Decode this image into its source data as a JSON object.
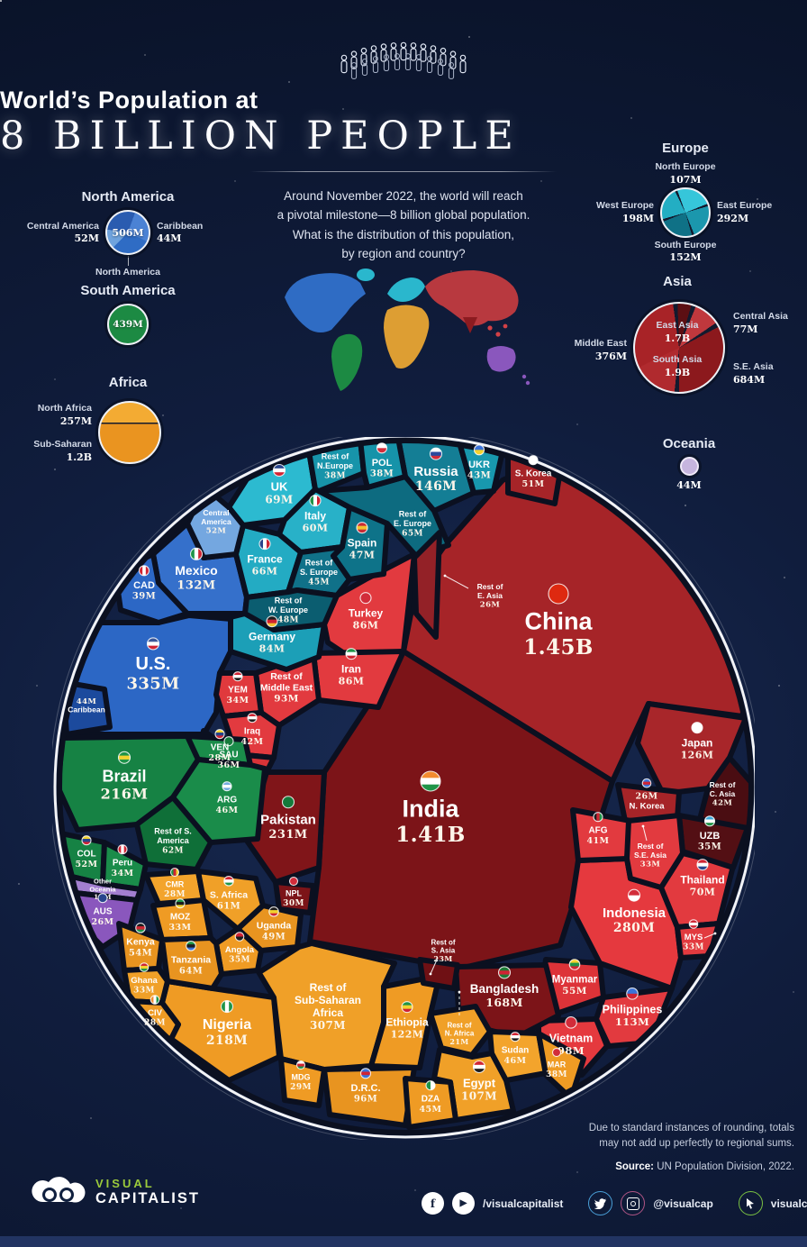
{
  "header": {
    "title_line1": "World’s Population at",
    "title_line2": "8 BILLION PEOPLE",
    "intro": "Around November 2022, the world will reach\na pivotal milestone—8 billion global population.\nWhat is the distribution of this population,\nby region and country?"
  },
  "legends": {
    "north_america": {
      "title": "North America",
      "left_label": "Central America",
      "left_value": "52M",
      "center_value": "506M",
      "right_label": "Caribbean",
      "right_value": "44M",
      "pointer_label": "North America",
      "color": "#2f6cc4"
    },
    "south_america": {
      "title": "South America",
      "value": "439M",
      "color": "#1c8a43"
    },
    "africa": {
      "title": "Africa",
      "top_label": "North Africa",
      "top_value": "257M",
      "bottom_label": "Sub-Saharan",
      "bottom_value": "1.2B",
      "color": "#ef9b24"
    },
    "europe": {
      "title": "Europe",
      "north_label": "North Europe",
      "north_value": "107M",
      "west_label": "West Europe",
      "west_value": "198M",
      "east_label": "East Europe",
      "east_value": "292M",
      "south_label": "South Europe",
      "south_value": "152M",
      "color": "#2ab7cd"
    },
    "asia": {
      "title": "Asia",
      "east_label": "East Asia",
      "east_value": "1.7B",
      "south_label": "South Asia",
      "south_value": "1.9B",
      "central_label": "Central Asia",
      "central_value": "77M",
      "middle_east_label": "Middle East",
      "middle_east_value": "376M",
      "se_label": "S.E. Asia",
      "se_value": "684M",
      "color": "#a82327"
    },
    "oceania": {
      "title": "Oceania",
      "value": "44M",
      "color": "#c6b5de"
    }
  },
  "chart_data": {
    "type": "voronoi_circular_treemap",
    "title": "World’s Population at 8 Billion People",
    "unit": "millions of people",
    "total_label": "8 billion",
    "regions": [
      {
        "name": "North America",
        "color": "#2c67c5",
        "subregions": [
          {
            "name": "North America",
            "m": 506
          },
          {
            "name": "Central America",
            "m": 52
          },
          {
            "name": "Caribbean",
            "m": 44
          }
        ]
      },
      {
        "name": "South America",
        "color": "#1c8a43",
        "subregions": [
          {
            "name": "South America",
            "m": 439
          }
        ]
      },
      {
        "name": "Europe",
        "color": "#2ab7cd",
        "subregions": [
          {
            "name": "North Europe",
            "m": 107
          },
          {
            "name": "West Europe",
            "m": 198
          },
          {
            "name": "East Europe",
            "m": 292
          },
          {
            "name": "South Europe",
            "m": 152
          }
        ]
      },
      {
        "name": "Africa",
        "color": "#ef9b24",
        "subregions": [
          {
            "name": "North Africa",
            "m": 257
          },
          {
            "name": "Sub-Saharan",
            "m": 1200
          }
        ]
      },
      {
        "name": "Asia",
        "color": "#a82327",
        "subregions": [
          {
            "name": "East Asia",
            "m": 1700
          },
          {
            "name": "South Asia",
            "m": 1900
          },
          {
            "name": "Central Asia",
            "m": 77
          },
          {
            "name": "S.E. Asia",
            "m": 684
          },
          {
            "name": "Middle East",
            "m": 376
          }
        ]
      },
      {
        "name": "Oceania",
        "color": "#8a57bd",
        "subregions": [
          {
            "name": "Oceania",
            "m": 44
          }
        ]
      }
    ],
    "cells": {
      "uk": {
        "name": "UK",
        "value": "69M",
        "m": 69,
        "color": "#2cbad0",
        "flag": [
          "#28458c",
          "#ffffff",
          "#cf2433"
        ]
      },
      "rest_n_europe": {
        "name": "Rest of\nN.Europe",
        "value": "38M",
        "m": 38,
        "color": "#1794aa"
      },
      "pol": {
        "name": "POL",
        "value": "38M",
        "m": 38,
        "color": "#1693a9",
        "flag": [
          "#ffffff",
          "#d22c3a"
        ]
      },
      "russia": {
        "name": "Russia",
        "value": "146M",
        "m": 146,
        "color": "#147e95",
        "flag": [
          "#ffffff",
          "#2b4a9e",
          "#d22c3a"
        ]
      },
      "ukr": {
        "name": "UKR",
        "value": "43M",
        "m": 43,
        "color": "#1898ae",
        "flag": [
          "#3a72d8",
          "#f2d22e"
        ]
      },
      "italy": {
        "name": "Italy",
        "value": "60M",
        "m": 60,
        "color": "#28b1c8",
        "flag": [
          "#1f9448",
          "#ffffff",
          "#cf2433"
        ],
        "fv": true
      },
      "spain": {
        "name": "Spain",
        "value": "47M",
        "m": 47,
        "color": "#0e7389",
        "flag": [
          "#c92b33",
          "#f2c12e",
          "#c92b33"
        ]
      },
      "rest_e_europe": {
        "name": "Rest of\nE. Europe",
        "value": "65M",
        "m": 65,
        "color": "#0d6b80"
      },
      "france": {
        "name": "France",
        "value": "66M",
        "m": 66,
        "color": "#23abc3",
        "flag": [
          "#28458c",
          "#ffffff",
          "#cf2433"
        ],
        "fv": true
      },
      "rest_s_europe": {
        "name": "Rest of\nS. Europe",
        "value": "45M",
        "m": 45,
        "color": "#107189"
      },
      "rest_w_europe": {
        "name": "Rest of\nW. Europe",
        "value": "48M",
        "m": 48,
        "color": "#0b5d70"
      },
      "germany": {
        "name": "Germany",
        "value": "84M",
        "m": 84,
        "color": "#1c9fb7",
        "flag": [
          "#1d1d1d",
          "#cf2433",
          "#f2c12e"
        ]
      },
      "central_america": {
        "name": "Central\nAmerica",
        "value": "52M",
        "m": 52,
        "color": "#74a7e0"
      },
      "mexico": {
        "name": "Mexico",
        "value": "132M",
        "m": 132,
        "color": "#3570cb",
        "flag": [
          "#1f9448",
          "#ffffff",
          "#cf2433"
        ],
        "fv": true
      },
      "cad": {
        "name": "CAD",
        "value": "39M",
        "m": 39,
        "color": "#2c67c5",
        "flag": [
          "#cf2433",
          "#ffffff",
          "#cf2433"
        ],
        "fv": true
      },
      "us": {
        "name": "U.S.",
        "value": "335M",
        "m": 335,
        "color": "#2c67c5",
        "flag": [
          "#3a5799",
          "#ffffff",
          "#cf2433"
        ]
      },
      "caribbean": {
        "name": "Caribbean",
        "value": "44M",
        "m": 44,
        "color": "#1c4a9d",
        "vf": true
      },
      "turkey": {
        "name": "Turkey",
        "value": "86M",
        "m": 86,
        "color": "#e23a3f",
        "flag": [
          "#d22c3a"
        ]
      },
      "iran": {
        "name": "Iran",
        "value": "86M",
        "m": 86,
        "color": "#e23a3f",
        "flag": [
          "#1f9448",
          "#ffffff",
          "#cf2433"
        ]
      },
      "rest_middle_east": {
        "name": "Rest of\nMiddle East",
        "value": "93M",
        "m": 93,
        "color": "#e23a3f"
      },
      "yem": {
        "name": "YEM",
        "value": "34M",
        "m": 34,
        "color": "#e0393d",
        "flag": [
          "#cf2433",
          "#ffffff",
          "#1d1d1d"
        ]
      },
      "iraq": {
        "name": "Iraq",
        "value": "42M",
        "m": 42,
        "color": "#e23a3f",
        "flag": [
          "#cf2433",
          "#ffffff",
          "#1d1d1d"
        ]
      },
      "sau": {
        "name": "SAU",
        "value": "36M",
        "m": 36,
        "color": "#d93338",
        "flag": [
          "#157a3b"
        ]
      },
      "brazil": {
        "name": "Brazil",
        "value": "216M",
        "m": 216,
        "color": "#168244",
        "flag": [
          "#1f9448",
          "#f2d22e",
          "#1f9448"
        ]
      },
      "ven": {
        "name": "VEN",
        "value": "28M",
        "m": 28,
        "color": "#1a8c4a",
        "flag": [
          "#f2d22e",
          "#28458c",
          "#cf2433"
        ]
      },
      "arg": {
        "name": "ARG",
        "value": "46M",
        "m": 46,
        "color": "#1a8c4a",
        "flag": [
          "#74acdf",
          "#ffffff",
          "#74acdf"
        ]
      },
      "rest_s_america": {
        "name": "Rest of S.\nAmerica",
        "value": "62M",
        "m": 62,
        "color": "#0f6f38"
      },
      "col": {
        "name": "COL",
        "value": "52M",
        "m": 52,
        "color": "#168244",
        "flag": [
          "#f2d22e",
          "#28458c",
          "#cf2433"
        ]
      },
      "peru": {
        "name": "Peru",
        "value": "34M",
        "m": 34,
        "color": "#1a8c4a",
        "flag": [
          "#cf2433",
          "#ffffff",
          "#cf2433"
        ],
        "fv": true
      },
      "other_oceania": {
        "name": "Other\nOceania",
        "value": "18M",
        "m": 18,
        "color": "#a37fd0"
      },
      "aus": {
        "name": "AUS",
        "value": "26M",
        "m": 26,
        "color": "#8a57bd",
        "flag": [
          "#28458c"
        ]
      },
      "cmr": {
        "name": "CMR",
        "value": "28M",
        "m": 28,
        "color": "#f3a42c",
        "flag": [
          "#1f9448",
          "#cf2433",
          "#f2d22e"
        ],
        "fv": true
      },
      "s_africa": {
        "name": "S. Africa",
        "value": "61M",
        "m": 61,
        "color": "#f0a028",
        "flag": [
          "#cf2433",
          "#ffffff",
          "#1f9448"
        ]
      },
      "uganda": {
        "name": "Uganda",
        "value": "49M",
        "m": 49,
        "color": "#e89420",
        "flag": [
          "#1d1d1d",
          "#f2d22e",
          "#cf2433"
        ]
      },
      "angola": {
        "name": "Angola",
        "value": "35M",
        "m": 35,
        "color": "#ef9b24",
        "flag": [
          "#cf2433",
          "#1d1d1d"
        ]
      },
      "moz": {
        "name": "MOZ",
        "value": "33M",
        "m": 33,
        "color": "#ef9b24",
        "flag": [
          "#1f9448",
          "#1d1d1d",
          "#f2d22e"
        ]
      },
      "kenya": {
        "name": "Kenya",
        "value": "54M",
        "m": 54,
        "color": "#e89420",
        "flag": [
          "#1d1d1d",
          "#cf2433",
          "#1f9448"
        ]
      },
      "tanzania": {
        "name": "Tanzania",
        "value": "64M",
        "m": 64,
        "color": "#e89420",
        "flag": [
          "#1f9448",
          "#1d1d1d",
          "#3a72d8"
        ]
      },
      "ghana": {
        "name": "Ghana",
        "value": "33M",
        "m": 33,
        "color": "#f0a028",
        "flag": [
          "#cf2433",
          "#f2d22e",
          "#1f9448"
        ]
      },
      "civ": {
        "name": "CIV",
        "value": "28M",
        "m": 28,
        "color": "#ef9b24",
        "flag": [
          "#f28b2e",
          "#ffffff",
          "#1f9448"
        ],
        "fv": true
      },
      "nigeria": {
        "name": "Nigeria",
        "value": "218M",
        "m": 218,
        "color": "#ef9b24",
        "flag": [
          "#1f9448",
          "#ffffff",
          "#1f9448"
        ],
        "fv": true
      },
      "rest_ssa": {
        "name": "Rest of\nSub-Saharan\nAfrica",
        "value": "307M",
        "m": 307,
        "color": "#f0a028"
      },
      "mdg": {
        "name": "MDG",
        "value": "29M",
        "m": 29,
        "color": "#ef9b24",
        "flag": [
          "#ffffff",
          "#cf2433",
          "#1f9448"
        ]
      },
      "drc": {
        "name": "D.R.C.",
        "value": "96M",
        "m": 96,
        "color": "#e89420",
        "flag": [
          "#3a72d8",
          "#cf2433",
          "#3a72d8"
        ]
      },
      "ethiopia": {
        "name": "Ethiopia",
        "value": "122M",
        "m": 122,
        "color": "#ef9b24",
        "flag": [
          "#1f9448",
          "#f2d22e",
          "#cf2433"
        ]
      },
      "rest_n_africa": {
        "name": "Rest of\nN. Africa",
        "value": "21M",
        "m": 21,
        "color": "#f0a028"
      },
      "dza": {
        "name": "DZA",
        "value": "45M",
        "m": 45,
        "color": "#ef9b24",
        "flag": [
          "#1f9448",
          "#ffffff"
        ],
        "fv": true
      },
      "egypt": {
        "name": "Egypt",
        "value": "107M",
        "m": 107,
        "color": "#f0a028",
        "flag": [
          "#cf2433",
          "#ffffff",
          "#1d1d1d"
        ]
      },
      "sudan": {
        "name": "Sudan",
        "value": "46M",
        "m": 46,
        "color": "#f3a42c",
        "flag": [
          "#cf2433",
          "#ffffff",
          "#1d1d1d"
        ]
      },
      "mar": {
        "name": "MAR",
        "value": "38M",
        "m": 38,
        "color": "#ef9b24",
        "flag": [
          "#d22c3a"
        ]
      },
      "china": {
        "name": "China",
        "value": "1.45B",
        "m": 1450,
        "color": "#a62428",
        "flag": [
          "#de2910"
        ]
      },
      "s_korea": {
        "name": "S. Korea",
        "value": "51M",
        "m": 51,
        "color": "#a62428",
        "flag": [
          "#ffffff"
        ]
      },
      "rest_e_asia": {
        "name": "Rest of\nE. Asia",
        "value": "26M",
        "m": 26,
        "color": "#932127"
      },
      "japan": {
        "name": "Japan",
        "value": "126M",
        "m": 126,
        "color": "#a8262a",
        "flag": [
          "#ffffff"
        ]
      },
      "rest_c_asia": {
        "name": "Rest of\nC. Asia",
        "value": "42M",
        "m": 42,
        "color": "#4a0d12"
      },
      "n_korea": {
        "name": "N. Korea",
        "value": "26M",
        "m": 26,
        "color": "#a62428",
        "flag": [
          "#3a72d8",
          "#cf2433",
          "#3a72d8"
        ],
        "vf": true
      },
      "uzb": {
        "name": "UZB",
        "value": "35M",
        "m": 35,
        "color": "#530f14",
        "flag": [
          "#3aa8d8",
          "#ffffff",
          "#1f9448"
        ]
      },
      "afg": {
        "name": "AFG",
        "value": "41M",
        "m": 41,
        "color": "#e23a3f",
        "flag": [
          "#1d1d1d",
          "#cf2433",
          "#1f9448"
        ],
        "fv": true
      },
      "rest_se_asia": {
        "name": "Rest of\nS.E. Asia",
        "value": "33M",
        "m": 33,
        "color": "#e23a3f"
      },
      "thailand": {
        "name": "Thailand",
        "value": "70M",
        "m": 70,
        "color": "#e23a3f",
        "flag": [
          "#cf2433",
          "#ffffff",
          "#28458c"
        ]
      },
      "mys": {
        "name": "MYS",
        "value": "33M",
        "m": 33,
        "color": "#e23a3f",
        "flag": [
          "#cf2433",
          "#ffffff",
          "#cf2433"
        ]
      },
      "indonesia": {
        "name": "Indonesia",
        "value": "280M",
        "m": 280,
        "color": "#e5393e",
        "flag": [
          "#d22c3a",
          "#ffffff"
        ]
      },
      "myanmar": {
        "name": "Myanmar",
        "value": "55M",
        "m": 55,
        "color": "#dd3338",
        "flag": [
          "#f2d22e",
          "#1f9448",
          "#cf2433"
        ]
      },
      "philippines": {
        "name": "Philippines",
        "value": "113M",
        "m": 113,
        "color": "#e23a3f",
        "flag": [
          "#3a72d8",
          "#cf2433"
        ]
      },
      "vietnam": {
        "name": "Vietnam",
        "value": "98M",
        "m": 98,
        "color": "#e5393e",
        "flag": [
          "#d22c3a"
        ]
      },
      "india": {
        "name": "India",
        "value": "1.41B",
        "m": 1410,
        "color": "#7c1418",
        "flag": [
          "#f28b2e",
          "#ffffff",
          "#1f9448"
        ]
      },
      "pakistan": {
        "name": "Pakistan",
        "value": "231M",
        "m": 231,
        "color": "#801519",
        "flag": [
          "#157a3b"
        ]
      },
      "npl": {
        "name": "NPL",
        "value": "30M",
        "m": 30,
        "color": "#7c1418",
        "flag": [
          "#d22c3a"
        ]
      },
      "bangladesh": {
        "name": "Bangladesh",
        "value": "168M",
        "m": 168,
        "color": "#7c1418",
        "flag": [
          "#1f7a35",
          "#cf2433",
          "#1f7a35"
        ]
      },
      "rest_s_asia": {
        "name": "Rest of\nS. Asia",
        "value": "23M",
        "m": 23,
        "color": "#6f1014"
      }
    }
  },
  "footer": {
    "disclaimer": "Due to standard instances of rounding, totals\nmay not add up perfectly to regional sums.",
    "source_label": "Source:",
    "source_text": " UN Population Division, 2022.",
    "logo_top": "VISUAL",
    "logo_bottom": "CAPITALIST",
    "social_handle1": "/visualcapitalist",
    "social_handle2": "@visualcap",
    "social_handle3": "visualcapitalist.com"
  }
}
